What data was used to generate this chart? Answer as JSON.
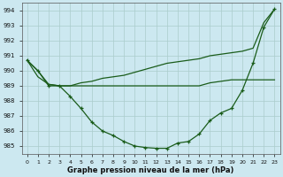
{
  "xlabel": "Graphe pression niveau de la mer (hPa)",
  "background_color": "#cce8f0",
  "grid_color": "#aacccc",
  "line_color": "#1a5c1a",
  "ylim": [
    984.5,
    994.5
  ],
  "yticks": [
    985,
    986,
    987,
    988,
    989,
    990,
    991,
    992,
    993,
    994
  ],
  "xticks": [
    0,
    1,
    2,
    3,
    4,
    5,
    6,
    7,
    8,
    9,
    10,
    11,
    12,
    13,
    14,
    15,
    16,
    17,
    18,
    19,
    20,
    21,
    22,
    23
  ],
  "line_marked": [
    990.7,
    990.0,
    989.0,
    989.0,
    988.3,
    987.5,
    986.6,
    986.0,
    985.7,
    985.3,
    985.0,
    984.9,
    984.85,
    984.85,
    985.2,
    985.3,
    985.8,
    986.7,
    987.2,
    987.5,
    988.7,
    990.5,
    992.9,
    994.1
  ],
  "line_rising": [
    990.7,
    990.0,
    989.1,
    989.0,
    989.0,
    989.2,
    989.3,
    989.5,
    989.6,
    989.7,
    989.9,
    990.1,
    990.3,
    990.5,
    990.6,
    990.7,
    990.8,
    991.0,
    991.1,
    991.2,
    991.3,
    991.5,
    993.2,
    994.1
  ],
  "line_flat": [
    990.7,
    989.6,
    989.1,
    989.0,
    989.0,
    989.0,
    989.0,
    989.0,
    989.0,
    989.0,
    989.0,
    989.0,
    989.0,
    989.0,
    989.0,
    989.0,
    989.0,
    989.2,
    989.3,
    989.4,
    989.4,
    989.4,
    989.4,
    989.4
  ]
}
